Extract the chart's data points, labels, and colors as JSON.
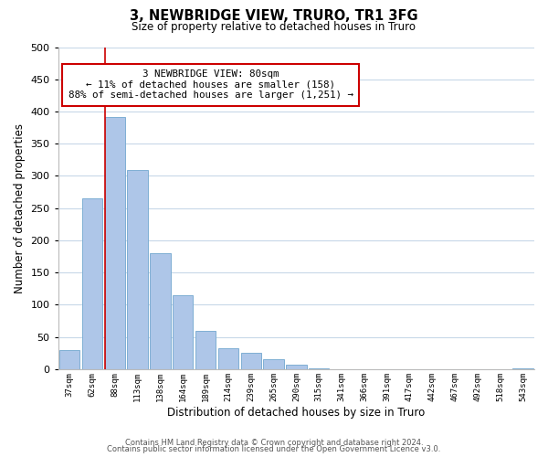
{
  "title": "3, NEWBRIDGE VIEW, TRURO, TR1 3FG",
  "subtitle": "Size of property relative to detached houses in Truro",
  "xlabel": "Distribution of detached houses by size in Truro",
  "ylabel": "Number of detached properties",
  "bar_labels": [
    "37sqm",
    "62sqm",
    "88sqm",
    "113sqm",
    "138sqm",
    "164sqm",
    "189sqm",
    "214sqm",
    "239sqm",
    "265sqm",
    "290sqm",
    "315sqm",
    "341sqm",
    "366sqm",
    "391sqm",
    "417sqm",
    "442sqm",
    "467sqm",
    "492sqm",
    "518sqm",
    "543sqm"
  ],
  "bar_values": [
    29,
    265,
    392,
    309,
    180,
    115,
    59,
    32,
    26,
    15,
    7,
    1,
    0,
    0,
    0,
    0,
    0,
    0,
    0,
    0,
    2
  ],
  "bar_color": "#aec6e8",
  "bar_edge_color": "#7fafd4",
  "property_line_color": "#cc0000",
  "annotation_text": "3 NEWBRIDGE VIEW: 80sqm\n← 11% of detached houses are smaller (158)\n88% of semi-detached houses are larger (1,251) →",
  "annotation_box_color": "#ffffff",
  "annotation_box_edge": "#cc0000",
  "ylim": [
    0,
    500
  ],
  "yticks": [
    0,
    50,
    100,
    150,
    200,
    250,
    300,
    350,
    400,
    450,
    500
  ],
  "footer1": "Contains HM Land Registry data © Crown copyright and database right 2024.",
  "footer2": "Contains public sector information licensed under the Open Government Licence v3.0.",
  "background_color": "#ffffff",
  "grid_color": "#c8d8e8"
}
